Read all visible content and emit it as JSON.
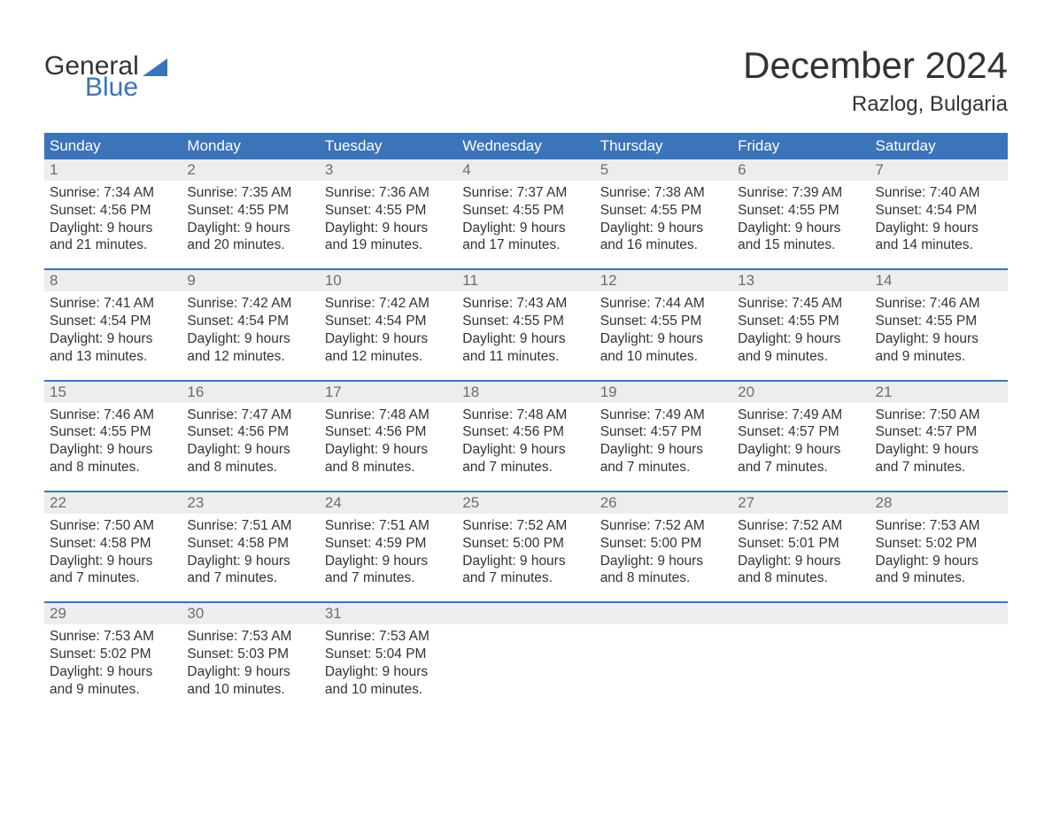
{
  "logo": {
    "text1": "General",
    "text2": "Blue",
    "wedge_color": "#3b74b9"
  },
  "title": "December 2024",
  "location": "Razlog, Bulgaria",
  "colors": {
    "header_bg": "#3b74b9",
    "header_text": "#ffffff",
    "daynum_bg": "#ededed",
    "daynum_text": "#6d6d6d",
    "body_text": "#333333",
    "week_divider": "#3b74b9",
    "page_bg": "#ffffff"
  },
  "typography": {
    "title_fontsize": 42,
    "location_fontsize": 24,
    "dayheader_fontsize": 17,
    "daynum_fontsize": 17,
    "cell_fontsize": 15.5,
    "font_family": "Arial"
  },
  "day_headers": [
    "Sunday",
    "Monday",
    "Tuesday",
    "Wednesday",
    "Thursday",
    "Friday",
    "Saturday"
  ],
  "weeks": [
    [
      {
        "day": 1,
        "sunrise": "7:34 AM",
        "sunset": "4:56 PM",
        "daylight": "9 hours and 21 minutes."
      },
      {
        "day": 2,
        "sunrise": "7:35 AM",
        "sunset": "4:55 PM",
        "daylight": "9 hours and 20 minutes."
      },
      {
        "day": 3,
        "sunrise": "7:36 AM",
        "sunset": "4:55 PM",
        "daylight": "9 hours and 19 minutes."
      },
      {
        "day": 4,
        "sunrise": "7:37 AM",
        "sunset": "4:55 PM",
        "daylight": "9 hours and 17 minutes."
      },
      {
        "day": 5,
        "sunrise": "7:38 AM",
        "sunset": "4:55 PM",
        "daylight": "9 hours and 16 minutes."
      },
      {
        "day": 6,
        "sunrise": "7:39 AM",
        "sunset": "4:55 PM",
        "daylight": "9 hours and 15 minutes."
      },
      {
        "day": 7,
        "sunrise": "7:40 AM",
        "sunset": "4:54 PM",
        "daylight": "9 hours and 14 minutes."
      }
    ],
    [
      {
        "day": 8,
        "sunrise": "7:41 AM",
        "sunset": "4:54 PM",
        "daylight": "9 hours and 13 minutes."
      },
      {
        "day": 9,
        "sunrise": "7:42 AM",
        "sunset": "4:54 PM",
        "daylight": "9 hours and 12 minutes."
      },
      {
        "day": 10,
        "sunrise": "7:42 AM",
        "sunset": "4:54 PM",
        "daylight": "9 hours and 12 minutes."
      },
      {
        "day": 11,
        "sunrise": "7:43 AM",
        "sunset": "4:55 PM",
        "daylight": "9 hours and 11 minutes."
      },
      {
        "day": 12,
        "sunrise": "7:44 AM",
        "sunset": "4:55 PM",
        "daylight": "9 hours and 10 minutes."
      },
      {
        "day": 13,
        "sunrise": "7:45 AM",
        "sunset": "4:55 PM",
        "daylight": "9 hours and 9 minutes."
      },
      {
        "day": 14,
        "sunrise": "7:46 AM",
        "sunset": "4:55 PM",
        "daylight": "9 hours and 9 minutes."
      }
    ],
    [
      {
        "day": 15,
        "sunrise": "7:46 AM",
        "sunset": "4:55 PM",
        "daylight": "9 hours and 8 minutes."
      },
      {
        "day": 16,
        "sunrise": "7:47 AM",
        "sunset": "4:56 PM",
        "daylight": "9 hours and 8 minutes."
      },
      {
        "day": 17,
        "sunrise": "7:48 AM",
        "sunset": "4:56 PM",
        "daylight": "9 hours and 8 minutes."
      },
      {
        "day": 18,
        "sunrise": "7:48 AM",
        "sunset": "4:56 PM",
        "daylight": "9 hours and 7 minutes."
      },
      {
        "day": 19,
        "sunrise": "7:49 AM",
        "sunset": "4:57 PM",
        "daylight": "9 hours and 7 minutes."
      },
      {
        "day": 20,
        "sunrise": "7:49 AM",
        "sunset": "4:57 PM",
        "daylight": "9 hours and 7 minutes."
      },
      {
        "day": 21,
        "sunrise": "7:50 AM",
        "sunset": "4:57 PM",
        "daylight": "9 hours and 7 minutes."
      }
    ],
    [
      {
        "day": 22,
        "sunrise": "7:50 AM",
        "sunset": "4:58 PM",
        "daylight": "9 hours and 7 minutes."
      },
      {
        "day": 23,
        "sunrise": "7:51 AM",
        "sunset": "4:58 PM",
        "daylight": "9 hours and 7 minutes."
      },
      {
        "day": 24,
        "sunrise": "7:51 AM",
        "sunset": "4:59 PM",
        "daylight": "9 hours and 7 minutes."
      },
      {
        "day": 25,
        "sunrise": "7:52 AM",
        "sunset": "5:00 PM",
        "daylight": "9 hours and 7 minutes."
      },
      {
        "day": 26,
        "sunrise": "7:52 AM",
        "sunset": "5:00 PM",
        "daylight": "9 hours and 8 minutes."
      },
      {
        "day": 27,
        "sunrise": "7:52 AM",
        "sunset": "5:01 PM",
        "daylight": "9 hours and 8 minutes."
      },
      {
        "day": 28,
        "sunrise": "7:53 AM",
        "sunset": "5:02 PM",
        "daylight": "9 hours and 9 minutes."
      }
    ],
    [
      {
        "day": 29,
        "sunrise": "7:53 AM",
        "sunset": "5:02 PM",
        "daylight": "9 hours and 9 minutes."
      },
      {
        "day": 30,
        "sunrise": "7:53 AM",
        "sunset": "5:03 PM",
        "daylight": "9 hours and 10 minutes."
      },
      {
        "day": 31,
        "sunrise": "7:53 AM",
        "sunset": "5:04 PM",
        "daylight": "9 hours and 10 minutes."
      },
      null,
      null,
      null,
      null
    ]
  ],
  "labels": {
    "sunrise_prefix": "Sunrise: ",
    "sunset_prefix": "Sunset: ",
    "daylight_prefix": "Daylight: "
  }
}
